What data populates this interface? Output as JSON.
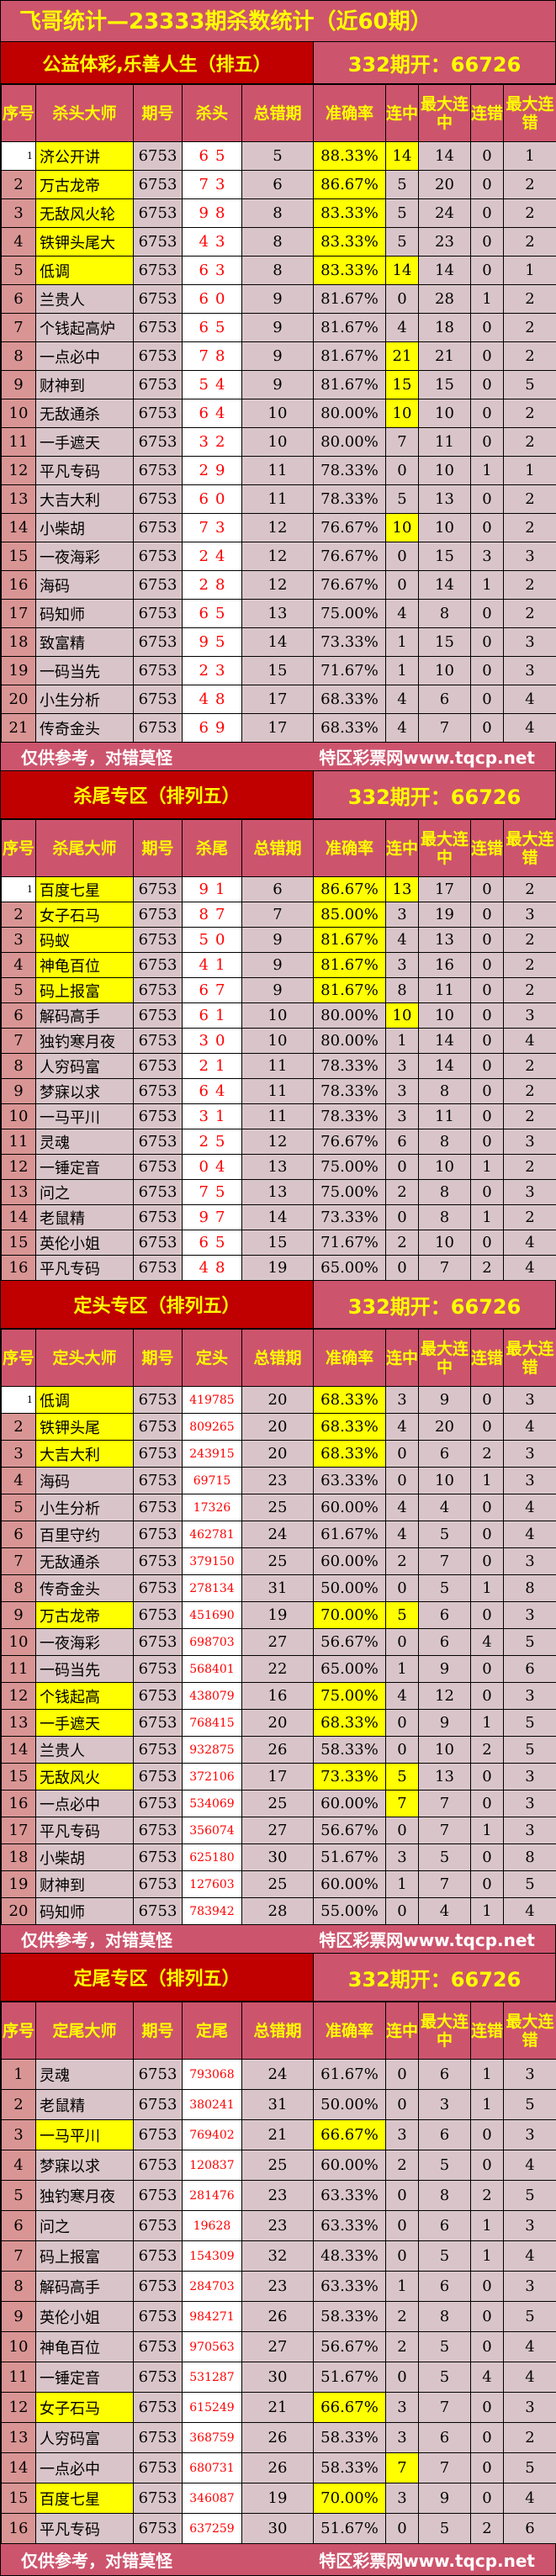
{
  "title": "飞哥统计—23333期杀数统计（近60期）",
  "footer": {
    "left": "仅供参考，对错莫怪",
    "right": "特区彩票网www.tqcp.net"
  },
  "colors": {
    "header_pink": "#cd546d",
    "band_red": "#c00000",
    "header_text": "#ffff00",
    "highlight": "#ffff00",
    "pick_text": "#ff0000",
    "cell_bg": "#d9c5c9",
    "seq_bg": "#d99594"
  },
  "sections": [
    {
      "band_left": "公益体彩,乐善人生（排五）",
      "band_right": "332期开：66726",
      "footer": true,
      "headers": [
        "序号",
        "杀头大师",
        "期号",
        "杀头",
        "总错期",
        "准确率",
        "连中",
        "最大连中",
        "连错",
        "最大连错"
      ],
      "rows": [
        {
          "c": [
            1,
            "济公开讲",
            "6753",
            "65",
            5,
            "88.33%",
            14,
            14,
            0,
            1
          ],
          "hl": true,
          "shl": true
        },
        {
          "c": [
            2,
            "万古龙帝",
            "6753",
            "73",
            6,
            "86.67%",
            5,
            20,
            0,
            2
          ],
          "hl": true
        },
        {
          "c": [
            3,
            "无敌风火轮",
            "6753",
            "98",
            8,
            "83.33%",
            5,
            24,
            0,
            2
          ],
          "hl": true
        },
        {
          "c": [
            4,
            "铁钾头尾大",
            "6753",
            "43",
            8,
            "83.33%",
            5,
            23,
            0,
            2
          ],
          "hl": true
        },
        {
          "c": [
            5,
            "低调",
            "6753",
            "63",
            8,
            "83.33%",
            14,
            14,
            0,
            1
          ],
          "hl": true,
          "shl": true
        },
        {
          "c": [
            6,
            "兰贵人",
            "6753",
            "60",
            9,
            "81.67%",
            0,
            28,
            1,
            2
          ]
        },
        {
          "c": [
            7,
            "个钱起高炉",
            "6753",
            "65",
            9,
            "81.67%",
            4,
            18,
            0,
            2
          ]
        },
        {
          "c": [
            8,
            "一点必中",
            "6753",
            "78",
            9,
            "81.67%",
            21,
            21,
            0,
            2
          ],
          "shl": true
        },
        {
          "c": [
            9,
            "财神到",
            "6753",
            "54",
            9,
            "81.67%",
            15,
            15,
            0,
            5
          ],
          "shl": true
        },
        {
          "c": [
            10,
            "无敌通杀",
            "6753",
            "64",
            10,
            "80.00%",
            10,
            10,
            0,
            2
          ],
          "shl": true
        },
        {
          "c": [
            11,
            "一手遮天",
            "6753",
            "32",
            10,
            "80.00%",
            7,
            11,
            0,
            2
          ]
        },
        {
          "c": [
            12,
            "平凡专码",
            "6753",
            "29",
            11,
            "78.33%",
            0,
            10,
            1,
            1
          ]
        },
        {
          "c": [
            13,
            "大吉大利",
            "6753",
            "60",
            11,
            "78.33%",
            5,
            13,
            0,
            2
          ]
        },
        {
          "c": [
            14,
            "小柴胡",
            "6753",
            "73",
            12,
            "76.67%",
            10,
            10,
            0,
            2
          ],
          "shl": true
        },
        {
          "c": [
            15,
            "一夜海彩",
            "6753",
            "24",
            12,
            "76.67%",
            0,
            15,
            3,
            3
          ]
        },
        {
          "c": [
            16,
            "海码",
            "6753",
            "28",
            12,
            "76.67%",
            0,
            14,
            1,
            2
          ]
        },
        {
          "c": [
            17,
            "码知师",
            "6753",
            "65",
            13,
            "75.00%",
            4,
            8,
            0,
            2
          ]
        },
        {
          "c": [
            18,
            "致富精",
            "6753",
            "95",
            14,
            "73.33%",
            1,
            15,
            0,
            3
          ]
        },
        {
          "c": [
            19,
            "一码当先",
            "6753",
            "23",
            15,
            "71.67%",
            1,
            10,
            0,
            3
          ]
        },
        {
          "c": [
            20,
            "小生分析",
            "6753",
            "48",
            17,
            "68.33%",
            4,
            6,
            0,
            4
          ]
        },
        {
          "c": [
            21,
            "传奇金头",
            "6753",
            "69",
            17,
            "68.33%",
            4,
            7,
            0,
            4
          ]
        }
      ]
    },
    {
      "band_left": "杀尾专区（排列五）",
      "band_right": "332期开：66726",
      "footer": false,
      "headers": [
        "序号",
        "杀尾大师",
        "期号",
        "杀尾",
        "总错期",
        "准确率",
        "连中",
        "最大连中",
        "连错",
        "最大连错"
      ],
      "rows": [
        {
          "c": [
            1,
            "百度七星",
            "6753",
            "91",
            6,
            "86.67%",
            13,
            17,
            0,
            2
          ],
          "hl": true,
          "shl": true
        },
        {
          "c": [
            2,
            "女子石马",
            "6753",
            "87",
            7,
            "85.00%",
            3,
            19,
            0,
            3
          ],
          "hl": true
        },
        {
          "c": [
            3,
            "码蚁",
            "6753",
            "50",
            9,
            "81.67%",
            4,
            13,
            0,
            2
          ],
          "hl": true
        },
        {
          "c": [
            4,
            "神龟百位",
            "6753",
            "41",
            9,
            "81.67%",
            3,
            16,
            0,
            2
          ],
          "hl": true
        },
        {
          "c": [
            5,
            "码上报富",
            "6753",
            "67",
            9,
            "81.67%",
            8,
            11,
            0,
            2
          ],
          "hl": true
        },
        {
          "c": [
            6,
            "解码高手",
            "6753",
            "61",
            10,
            "80.00%",
            10,
            10,
            0,
            3
          ],
          "shl": true
        },
        {
          "c": [
            7,
            "独钓寒月夜",
            "6753",
            "30",
            10,
            "80.00%",
            1,
            14,
            0,
            4
          ]
        },
        {
          "c": [
            8,
            "人穷码富",
            "6753",
            "21",
            11,
            "78.33%",
            3,
            14,
            0,
            2
          ]
        },
        {
          "c": [
            9,
            "梦寐以求",
            "6753",
            "64",
            11,
            "78.33%",
            3,
            8,
            0,
            2
          ]
        },
        {
          "c": [
            10,
            "一马平川",
            "6753",
            "31",
            11,
            "78.33%",
            3,
            11,
            0,
            2
          ]
        },
        {
          "c": [
            11,
            "灵魂",
            "6753",
            "25",
            12,
            "76.67%",
            6,
            8,
            0,
            3
          ]
        },
        {
          "c": [
            12,
            "一锤定音",
            "6753",
            "04",
            13,
            "75.00%",
            0,
            10,
            1,
            2
          ]
        },
        {
          "c": [
            13,
            "问之",
            "6753",
            "75",
            13,
            "75.00%",
            2,
            8,
            0,
            3
          ]
        },
        {
          "c": [
            14,
            "老鼠精",
            "6753",
            "97",
            14,
            "73.33%",
            0,
            8,
            1,
            2
          ]
        },
        {
          "c": [
            15,
            "英伦小姐",
            "6753",
            "65",
            15,
            "71.67%",
            2,
            10,
            0,
            4
          ]
        },
        {
          "c": [
            16,
            "平凡专码",
            "6753",
            "48",
            19,
            "65.00%",
            0,
            7,
            2,
            4
          ]
        }
      ]
    },
    {
      "band_left": "定头专区（排列五）",
      "band_right": "332期开：66726",
      "footer": true,
      "headers": [
        "序号",
        "定头大师",
        "期号",
        "定头",
        "总错期",
        "准确率",
        "连中",
        "最大连中",
        "连错",
        "最大连错"
      ],
      "rows": [
        {
          "c": [
            1,
            "低调",
            "6753",
            "419785",
            20,
            "68.33%",
            3,
            9,
            0,
            3
          ],
          "hl": true
        },
        {
          "c": [
            2,
            "铁钾头尾",
            "6753",
            "809265",
            20,
            "68.33%",
            4,
            20,
            0,
            4
          ],
          "hl": true
        },
        {
          "c": [
            3,
            "大吉大利",
            "6753",
            "243915",
            20,
            "68.33%",
            0,
            6,
            2,
            3
          ],
          "hl": true
        },
        {
          "c": [
            4,
            "海码",
            "6753",
            "69715",
            23,
            "63.33%",
            0,
            10,
            1,
            3
          ]
        },
        {
          "c": [
            5,
            "小生分析",
            "6753",
            "17326",
            25,
            "60.00%",
            4,
            4,
            0,
            4
          ]
        },
        {
          "c": [
            6,
            "百里守约",
            "6753",
            "462781",
            24,
            "61.67%",
            4,
            5,
            0,
            4
          ]
        },
        {
          "c": [
            7,
            "无敌通杀",
            "6753",
            "379150",
            25,
            "60.00%",
            2,
            7,
            0,
            3
          ]
        },
        {
          "c": [
            8,
            "传奇金头",
            "6753",
            "278134",
            31,
            "50.00%",
            0,
            5,
            1,
            8
          ]
        },
        {
          "c": [
            9,
            "万古龙帝",
            "6753",
            "451690",
            19,
            "70.00%",
            5,
            6,
            0,
            3
          ],
          "hl": true,
          "shl": true
        },
        {
          "c": [
            10,
            "一夜海彩",
            "6753",
            "698703",
            27,
            "56.67%",
            0,
            6,
            4,
            5
          ]
        },
        {
          "c": [
            11,
            "一码当先",
            "6753",
            "568401",
            22,
            "65.00%",
            1,
            9,
            0,
            6
          ]
        },
        {
          "c": [
            12,
            "个钱起高",
            "6753",
            "438079",
            16,
            "75.00%",
            4,
            12,
            0,
            3
          ],
          "hl": true
        },
        {
          "c": [
            13,
            "一手遮天",
            "6753",
            "768415",
            20,
            "68.33%",
            0,
            9,
            1,
            5
          ],
          "hl": true
        },
        {
          "c": [
            14,
            "兰贵人",
            "6753",
            "932875",
            26,
            "58.33%",
            0,
            10,
            2,
            5
          ]
        },
        {
          "c": [
            15,
            "无敌风火",
            "6753",
            "372106",
            17,
            "73.33%",
            5,
            13,
            0,
            3
          ],
          "hl": true,
          "shl": true
        },
        {
          "c": [
            16,
            "一点必中",
            "6753",
            "534069",
            25,
            "60.00%",
            7,
            7,
            0,
            3
          ],
          "shl": true
        },
        {
          "c": [
            17,
            "平凡专码",
            "6753",
            "356074",
            27,
            "56.67%",
            0,
            7,
            1,
            3
          ]
        },
        {
          "c": [
            18,
            "小柴胡",
            "6753",
            "625180",
            30,
            "51.67%",
            3,
            5,
            0,
            8
          ]
        },
        {
          "c": [
            19,
            "财神到",
            "6753",
            "127603",
            25,
            "60.00%",
            1,
            7,
            0,
            5
          ]
        },
        {
          "c": [
            20,
            "码知师",
            "6753",
            "783942",
            28,
            "55.00%",
            0,
            4,
            1,
            4
          ]
        }
      ]
    },
    {
      "band_left": "定尾专区（排列五）",
      "band_right": "332期开：66726",
      "footer": true,
      "headers": [
        "序号",
        "定尾大师",
        "期号",
        "定尾",
        "总错期",
        "准确率",
        "连中",
        "最大连中",
        "连错",
        "最大连错"
      ],
      "rows": [
        {
          "c": [
            1,
            "灵魂",
            "6753",
            "793068",
            24,
            "61.67%",
            0,
            6,
            1,
            3
          ]
        },
        {
          "c": [
            2,
            "老鼠精",
            "6753",
            "380241",
            31,
            "50.00%",
            0,
            3,
            1,
            5
          ]
        },
        {
          "c": [
            3,
            "一马平川",
            "6753",
            "769402",
            21,
            "66.67%",
            3,
            6,
            0,
            3
          ],
          "hl": true
        },
        {
          "c": [
            4,
            "梦寐以求",
            "6753",
            "120837",
            25,
            "60.00%",
            2,
            5,
            0,
            4
          ]
        },
        {
          "c": [
            5,
            "独钓寒月夜",
            "6753",
            "281476",
            23,
            "63.33%",
            0,
            8,
            2,
            5
          ]
        },
        {
          "c": [
            6,
            "问之",
            "6753",
            "19628",
            23,
            "63.33%",
            0,
            6,
            1,
            3
          ]
        },
        {
          "c": [
            7,
            "码上报富",
            "6753",
            "154309",
            32,
            "48.33%",
            0,
            5,
            1,
            4
          ]
        },
        {
          "c": [
            8,
            "解码高手",
            "6753",
            "284703",
            23,
            "63.33%",
            1,
            6,
            0,
            3
          ]
        },
        {
          "c": [
            9,
            "英伦小姐",
            "6753",
            "984271",
            26,
            "58.33%",
            2,
            8,
            0,
            5
          ]
        },
        {
          "c": [
            10,
            "神龟百位",
            "6753",
            "970563",
            27,
            "56.67%",
            2,
            5,
            0,
            4
          ]
        },
        {
          "c": [
            11,
            "一锤定音",
            "6753",
            "531287",
            30,
            "51.67%",
            0,
            5,
            4,
            4
          ]
        },
        {
          "c": [
            12,
            "女子石马",
            "6753",
            "615249",
            21,
            "66.67%",
            3,
            7,
            0,
            3
          ],
          "hl": true
        },
        {
          "c": [
            13,
            "人穷码富",
            "6753",
            "368759",
            26,
            "58.33%",
            3,
            6,
            0,
            2
          ]
        },
        {
          "c": [
            14,
            "一点必中",
            "6753",
            "680731",
            26,
            "58.33%",
            7,
            7,
            0,
            5
          ],
          "shl": true
        },
        {
          "c": [
            15,
            "百度七星",
            "6753",
            "346087",
            19,
            "70.00%",
            3,
            9,
            0,
            4
          ],
          "hl": true
        },
        {
          "c": [
            16,
            "平凡专码",
            "6753",
            "637259",
            30,
            "51.67%",
            0,
            5,
            2,
            6
          ]
        }
      ]
    }
  ]
}
